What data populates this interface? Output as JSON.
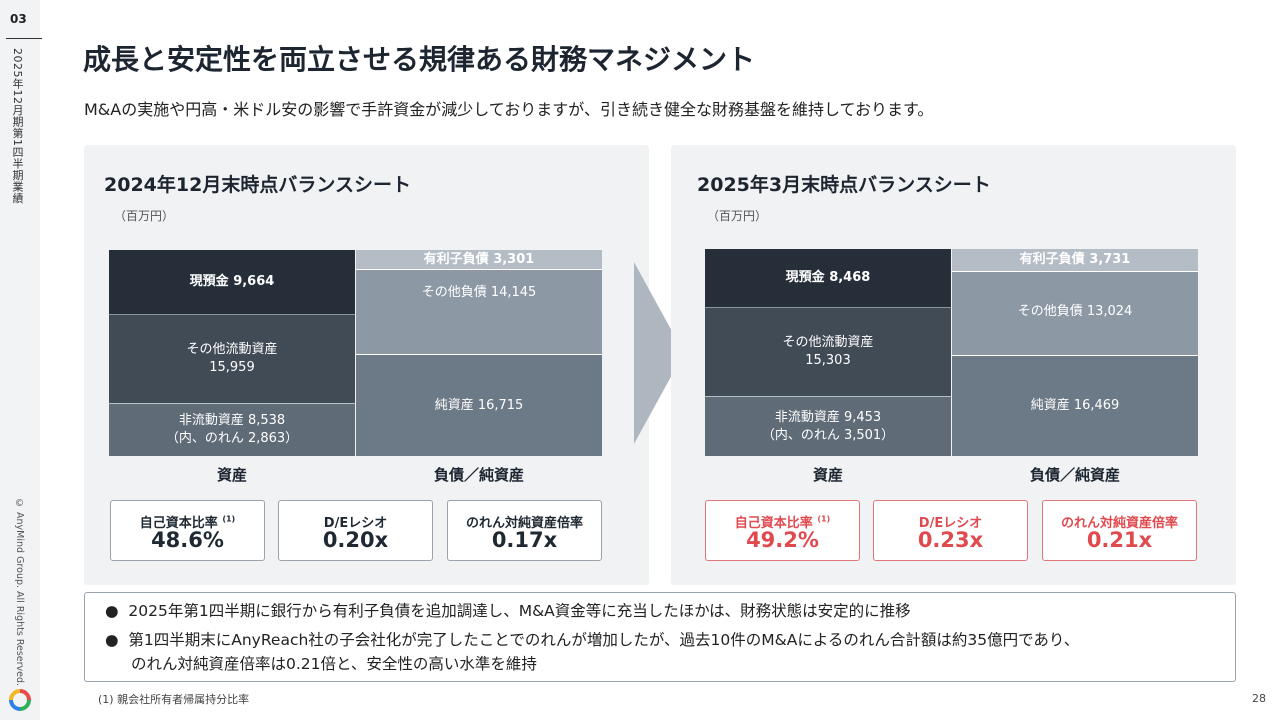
{
  "sidebar": {
    "page_number": "03",
    "section_title": "2025年12月期第1四半期業績",
    "copyright": "© AnyMind Group. All Rights Reserved."
  },
  "title": "成長と安定性を両立させる規律ある財務マネジメント",
  "subtitle": "M&Aの実施や円高・米ドル安の影響で手許資金が減少しておりますが、引き続き健全な財務基盤を維持しております。",
  "left_panel": {
    "heading": "2024年12月末時点バランスシート",
    "unit": "（百万円）",
    "assets": {
      "cash": "現預金 9,664",
      "other_current_1": "その他流動資産",
      "other_current_2": "15,959",
      "noncurrent_1": "非流動資産 8,538",
      "noncurrent_2": "（内、のれん 2,863）"
    },
    "liabilities": {
      "interest_bearing": "有利子負債 3,301",
      "other": "その他負債 14,145",
      "equity": "純資産 16,715"
    },
    "assets_label": "資産",
    "liabilities_label": "負債／純資産",
    "metrics": [
      {
        "label": "自己資本比率",
        "note": "(1)",
        "value": "48.6%"
      },
      {
        "label": "D/Eレシオ",
        "value": "0.20x"
      },
      {
        "label": "のれん対純資産倍率",
        "value": "0.17x"
      }
    ]
  },
  "right_panel": {
    "heading": "2025年3月末時点バランスシート",
    "unit": "（百万円）",
    "assets": {
      "cash": "現預金 8,468",
      "other_current_1": "その他流動資産",
      "other_current_2": "15,303",
      "noncurrent_1": "非流動資産 9,453",
      "noncurrent_2": "（内、のれん 3,501）"
    },
    "liabilities": {
      "interest_bearing": "有利子負債 3,731",
      "other": "その他負債 13,024",
      "equity": "純資産 16,469"
    },
    "assets_label": "資産",
    "liabilities_label": "負債／純資産",
    "metrics": [
      {
        "label": "自己資本比率",
        "note": "(1)",
        "value": "49.2%"
      },
      {
        "label": "D/Eレシオ",
        "value": "0.23x"
      },
      {
        "label": "のれん対純資産倍率",
        "value": "0.21x"
      }
    ]
  },
  "notes": {
    "bullet": "●",
    "line1": "2025年第1四半期に銀行から有利子負債を追加調達し、M&A資金等に充当したほかは、財務状態は安定的に推移",
    "line2a": "第1四半期末にAnyReach社の子会社化が完了したことでのれんが増加したが、過去10件のM&Aによるのれん合計額は約35億円であり、",
    "line2b": "のれん対純資産倍率は0.21倍と、安全性の高い水準を維持"
  },
  "footnote": "(1) 親会社所有者帰属持分比率",
  "page_number": "28",
  "colors": {
    "highlight_red": "#e04a4f",
    "cash_block": "#262f39",
    "panel_bg": "#f0f2f4"
  }
}
